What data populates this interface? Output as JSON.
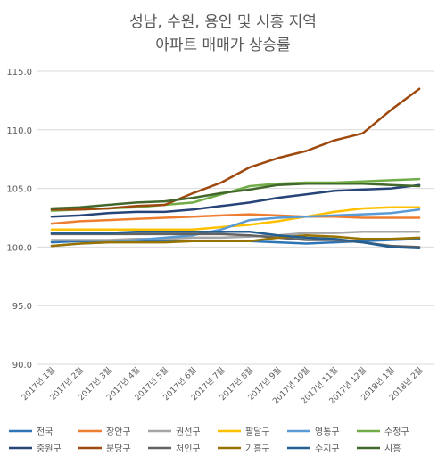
{
  "chart_data": {
    "type": "line",
    "title_lines": [
      "성남, 수원, 용인 및 시흥 지역",
      "아파트 매매가 상승률"
    ],
    "x": [
      "2017년 1월",
      "2017년 2월",
      "2017년 3월",
      "2017년 4월",
      "2017년 5월",
      "2017년 6월",
      "2017년 7월",
      "2017년 8월",
      "2017년 9월",
      "2017년 10월",
      "2017년 11월",
      "2017년 12월",
      "2018년 1월",
      "2018년 2월"
    ],
    "ylim": [
      90,
      115
    ],
    "y_ticks": [
      "90.0",
      "95.0",
      "100.0",
      "105.0",
      "110.0",
      "115.0"
    ],
    "y_tick_values": [
      90,
      95,
      100,
      105,
      110,
      115
    ],
    "grid": true,
    "legend_position": "bottom",
    "series": [
      {
        "name": "전국",
        "color": "#2e75b6",
        "values": [
          100.4,
          100.5,
          100.5,
          100.5,
          100.5,
          100.5,
          100.5,
          100.5,
          100.4,
          100.3,
          100.4,
          100.5,
          100.6,
          100.7
        ]
      },
      {
        "name": "장안구",
        "color": "#ed7d31",
        "values": [
          102.0,
          102.2,
          102.3,
          102.4,
          102.5,
          102.6,
          102.7,
          102.8,
          102.7,
          102.6,
          102.6,
          102.5,
          102.5,
          102.5
        ]
      },
      {
        "name": "권선구",
        "color": "#a5a5a5",
        "values": [
          100.6,
          100.6,
          100.6,
          100.7,
          100.7,
          100.8,
          100.8,
          100.9,
          101.0,
          101.2,
          101.2,
          101.3,
          101.3,
          101.3
        ]
      },
      {
        "name": "팔달구",
        "color": "#ffc000",
        "values": [
          101.5,
          101.5,
          101.5,
          101.5,
          101.5,
          101.5,
          101.7,
          101.9,
          102.2,
          102.6,
          103.0,
          103.3,
          103.4,
          103.4
        ]
      },
      {
        "name": "영통구",
        "color": "#5b9bd5",
        "values": [
          100.1,
          100.3,
          100.4,
          100.6,
          100.8,
          101.0,
          101.5,
          102.3,
          102.5,
          102.6,
          102.7,
          102.8,
          102.9,
          103.2
        ]
      },
      {
        "name": "수정구",
        "color": "#70ad47",
        "values": [
          103.1,
          103.2,
          103.3,
          103.4,
          103.6,
          103.8,
          104.5,
          105.2,
          105.4,
          105.5,
          105.5,
          105.6,
          105.7,
          105.8
        ]
      },
      {
        "name": "중원구",
        "color": "#264478",
        "values": [
          102.6,
          102.7,
          102.9,
          103.0,
          103.0,
          103.2,
          103.5,
          103.8,
          104.2,
          104.5,
          104.8,
          104.9,
          105.0,
          105.3
        ]
      },
      {
        "name": "분당구",
        "color": "#9e480e",
        "values": [
          103.2,
          103.2,
          103.3,
          103.5,
          103.6,
          104.6,
          105.5,
          106.8,
          107.6,
          108.2,
          109.1,
          109.7,
          111.7,
          113.5
        ]
      },
      {
        "name": "처인구",
        "color": "#636363",
        "values": [
          101.1,
          101.1,
          101.1,
          101.1,
          101.1,
          101.1,
          101.1,
          101.0,
          100.8,
          100.6,
          100.6,
          100.4,
          100.1,
          100.0
        ]
      },
      {
        "name": "기흥구",
        "color": "#997300",
        "values": [
          100.1,
          100.3,
          100.4,
          100.4,
          100.4,
          100.5,
          100.5,
          100.5,
          100.8,
          101.0,
          100.9,
          100.7,
          100.7,
          100.8
        ]
      },
      {
        "name": "수지구",
        "color": "#255e91",
        "values": [
          101.2,
          101.2,
          101.2,
          101.3,
          101.3,
          101.3,
          101.3,
          101.3,
          101.0,
          100.8,
          100.7,
          100.4,
          100.0,
          99.9
        ]
      },
      {
        "name": "시흥",
        "color": "#43682b",
        "values": [
          103.3,
          103.4,
          103.6,
          103.8,
          103.9,
          104.2,
          104.6,
          104.9,
          105.3,
          105.4,
          105.4,
          105.4,
          105.3,
          105.2
        ]
      }
    ]
  }
}
